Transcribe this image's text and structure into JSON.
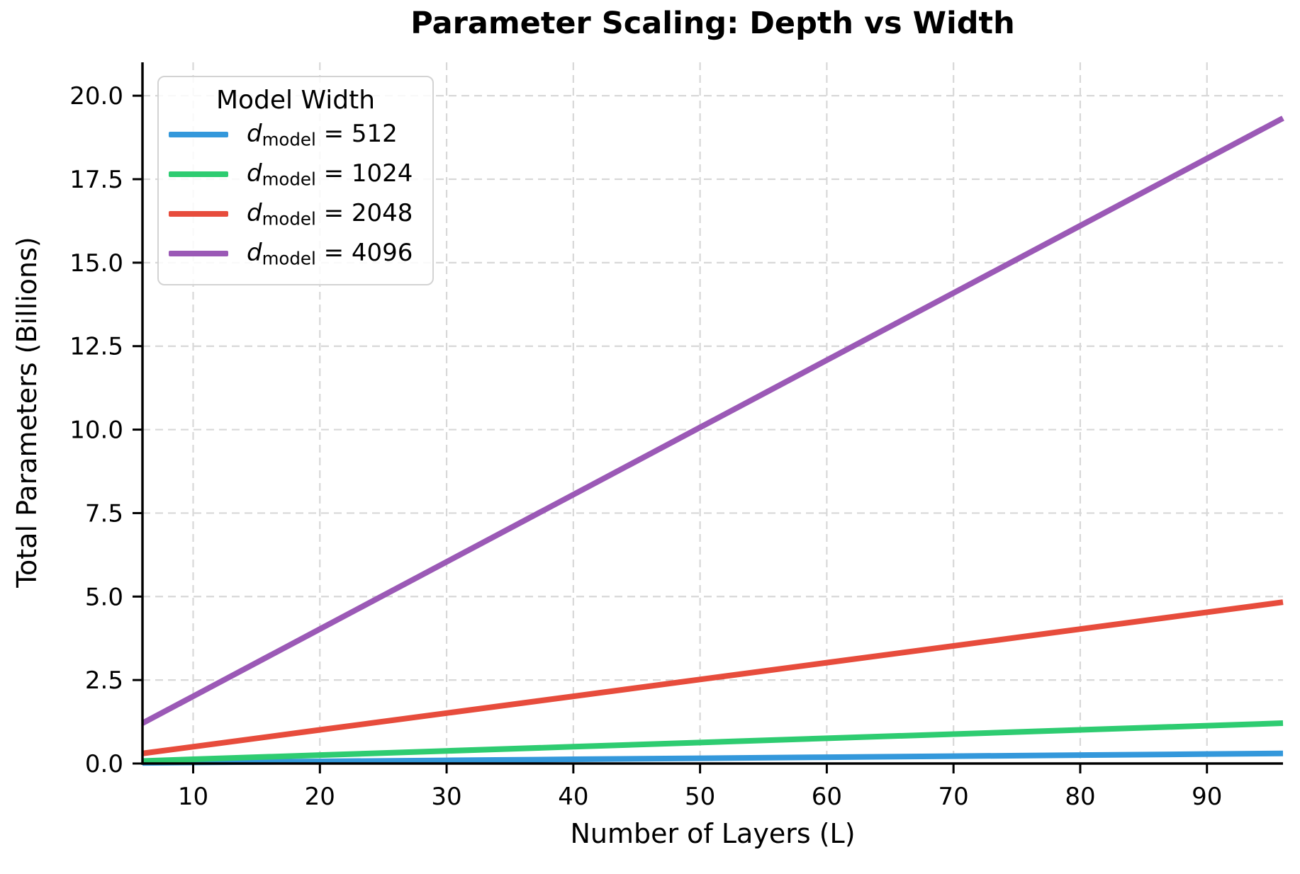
{
  "chart_data": {
    "type": "line",
    "title": "Parameter Scaling: Depth vs Width",
    "xlabel": "Number of Layers (L)",
    "ylabel": "Total Parameters (Billions)",
    "xlim": [
      6,
      96
    ],
    "ylim": [
      0,
      21
    ],
    "grid": true,
    "grid_style": "dashed",
    "x_ticks": [
      10,
      20,
      30,
      40,
      50,
      60,
      70,
      80,
      90
    ],
    "x_tick_labels": [
      "10",
      "20",
      "30",
      "40",
      "50",
      "60",
      "70",
      "80",
      "90"
    ],
    "y_ticks": [
      0,
      2.5,
      5,
      7.5,
      10,
      12.5,
      15,
      17.5,
      20
    ],
    "y_tick_labels": [
      "0.0",
      "2.5",
      "5.0",
      "7.5",
      "10.0",
      "12.5",
      "15.0",
      "17.5",
      "20.0"
    ],
    "x": [
      6,
      10,
      20,
      30,
      40,
      50,
      60,
      70,
      80,
      90,
      96
    ],
    "series": [
      {
        "name": "d_model = 512",
        "color": "#3498db",
        "values": [
          0.019,
          0.031,
          0.063,
          0.094,
          0.126,
          0.157,
          0.189,
          0.22,
          0.252,
          0.283,
          0.302
        ]
      },
      {
        "name": "d_model = 1024",
        "color": "#2ecc71",
        "values": [
          0.075,
          0.126,
          0.252,
          0.377,
          0.503,
          0.629,
          0.755,
          0.881,
          1.007,
          1.132,
          1.208
        ]
      },
      {
        "name": "d_model = 2048",
        "color": "#e74c3c",
        "values": [
          0.302,
          0.503,
          1.007,
          1.51,
          2.013,
          2.517,
          3.02,
          3.523,
          4.027,
          4.53,
          4.832
        ]
      },
      {
        "name": "d_model = 4096",
        "color": "#9b59b6",
        "values": [
          1.208,
          2.013,
          4.027,
          6.04,
          8.053,
          10.066,
          12.08,
          14.093,
          16.106,
          18.119,
          19.327
        ]
      }
    ],
    "legend": {
      "title": "Model Width",
      "position": "upper-left",
      "entries": [
        {
          "var": "d",
          "sub": "model",
          "rest": " = 512",
          "color": "#3498db"
        },
        {
          "var": "d",
          "sub": "model",
          "rest": " = 1024",
          "color": "#2ecc71"
        },
        {
          "var": "d",
          "sub": "model",
          "rest": " = 2048",
          "color": "#e74c3c"
        },
        {
          "var": "d",
          "sub": "model",
          "rest": " = 4096",
          "color": "#9b59b6"
        }
      ]
    }
  }
}
